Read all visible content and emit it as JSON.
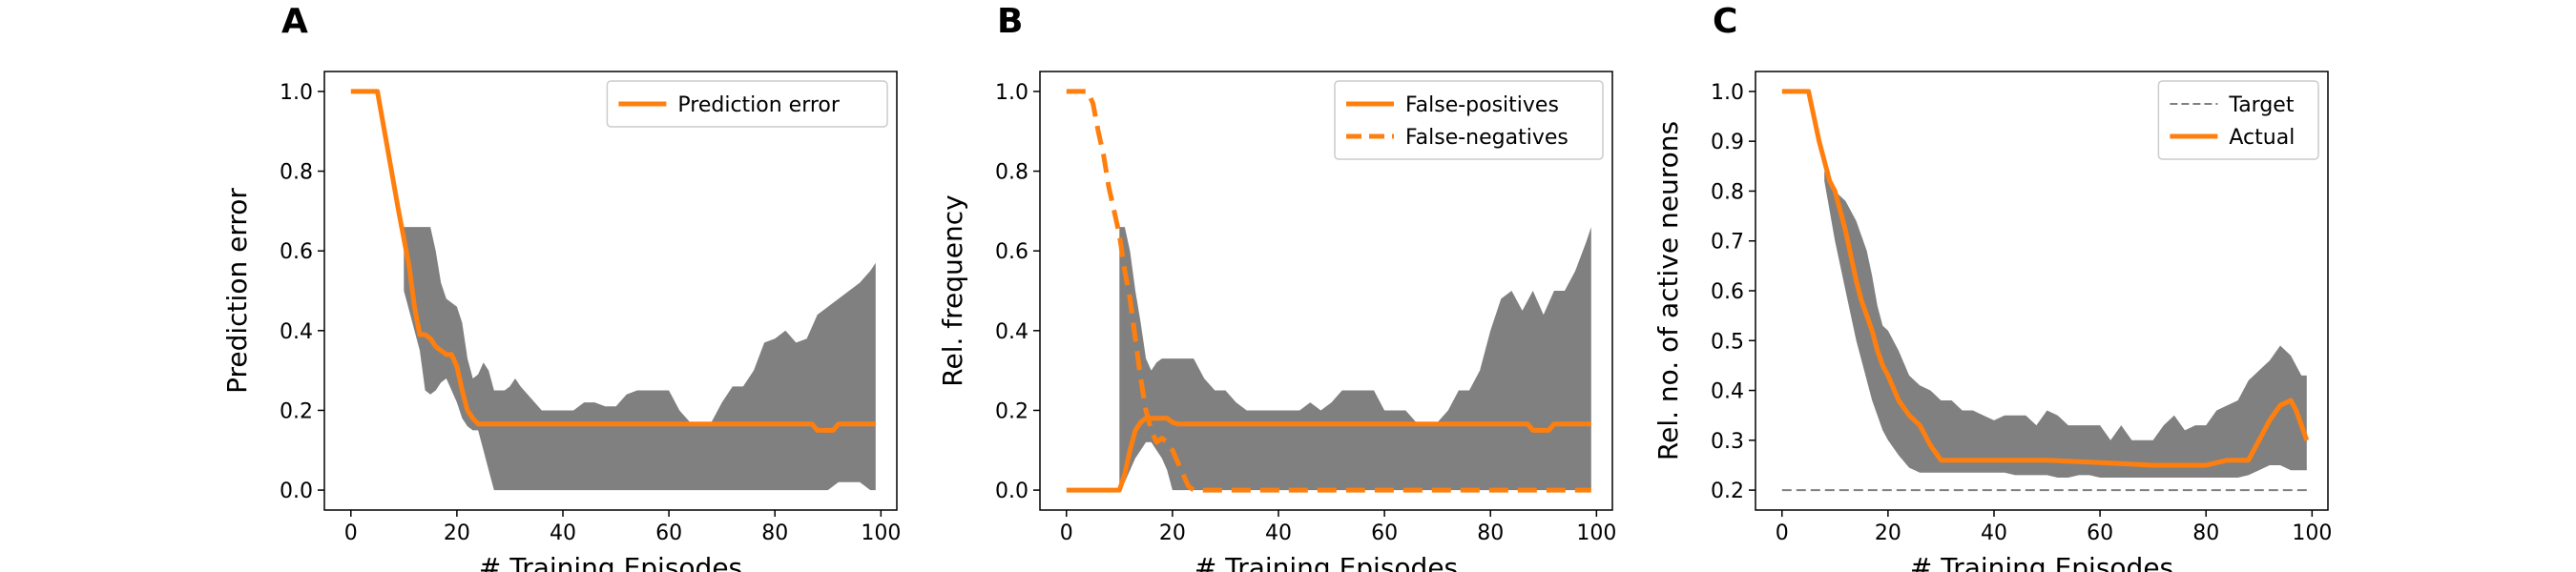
{
  "colors": {
    "actual": "#ff7f0e",
    "band": "#808080",
    "target": "#808080"
  },
  "chart_data": [
    {
      "panel": "A",
      "type": "line",
      "xlabel": "# Training Episodes",
      "ylabel": "Prediction error",
      "xlim": [
        -5,
        103
      ],
      "ylim": [
        -0.05,
        1.05
      ],
      "xticks": [
        0,
        20,
        40,
        60,
        80,
        100
      ],
      "yticks": [
        0.0,
        0.2,
        0.4,
        0.6,
        0.8,
        1.0
      ],
      "ytick_decimals": 1,
      "legend_position": "top-right",
      "legend": [
        "Prediction error"
      ],
      "band": {
        "x": [
          10,
          11,
          12,
          13,
          14,
          15,
          16,
          17,
          18,
          19,
          20,
          21,
          22,
          23,
          24,
          25,
          26,
          27,
          28,
          29,
          30,
          31,
          32,
          34,
          36,
          38,
          40,
          42,
          44,
          46,
          48,
          50,
          52,
          54,
          56,
          58,
          60,
          62,
          64,
          66,
          68,
          70,
          72,
          74,
          76,
          78,
          80,
          82,
          84,
          86,
          88,
          90,
          92,
          94,
          96,
          98,
          99
        ],
        "upper": [
          0.66,
          0.66,
          0.66,
          0.66,
          0.66,
          0.66,
          0.6,
          0.52,
          0.48,
          0.47,
          0.46,
          0.42,
          0.33,
          0.28,
          0.29,
          0.32,
          0.3,
          0.25,
          0.25,
          0.25,
          0.26,
          0.28,
          0.26,
          0.23,
          0.2,
          0.2,
          0.2,
          0.2,
          0.22,
          0.22,
          0.21,
          0.21,
          0.24,
          0.25,
          0.25,
          0.25,
          0.25,
          0.2,
          0.17,
          0.17,
          0.17,
          0.22,
          0.26,
          0.26,
          0.3,
          0.37,
          0.38,
          0.4,
          0.37,
          0.38,
          0.44,
          0.46,
          0.48,
          0.5,
          0.52,
          0.55,
          0.57
        ],
        "lower": [
          0.5,
          0.45,
          0.4,
          0.35,
          0.25,
          0.24,
          0.25,
          0.27,
          0.28,
          0.25,
          0.22,
          0.18,
          0.16,
          0.15,
          0.15,
          0.1,
          0.05,
          0.0,
          0.0,
          0.0,
          0.0,
          0.0,
          0.0,
          0.0,
          0.0,
          0.0,
          0.0,
          0.0,
          0.0,
          0.0,
          0.0,
          0.0,
          0.0,
          0.0,
          0.0,
          0.0,
          0.0,
          0.0,
          0.0,
          0.0,
          0.0,
          0.0,
          0.0,
          0.0,
          0.0,
          0.0,
          0.0,
          0.0,
          0.0,
          0.0,
          0.0,
          0.0,
          0.02,
          0.02,
          0.02,
          0.0,
          0.0
        ]
      },
      "series": [
        {
          "name": "Prediction error",
          "style": "solid",
          "color": "#ff7f0e",
          "x": [
            0,
            5,
            7,
            9,
            11,
            12,
            13,
            14,
            15,
            16,
            17,
            18,
            19,
            20,
            21,
            22,
            23,
            24,
            30,
            40,
            50,
            60,
            70,
            80,
            86,
            87,
            88,
            89,
            90,
            91,
            92,
            99
          ],
          "y": [
            1.0,
            1.0,
            0.85,
            0.7,
            0.56,
            0.46,
            0.39,
            0.39,
            0.38,
            0.36,
            0.35,
            0.34,
            0.34,
            0.31,
            0.25,
            0.2,
            0.18,
            0.166,
            0.166,
            0.166,
            0.166,
            0.166,
            0.166,
            0.166,
            0.166,
            0.166,
            0.15,
            0.15,
            0.15,
            0.15,
            0.166,
            0.166
          ]
        }
      ]
    },
    {
      "panel": "B",
      "type": "line",
      "xlabel": "# Training Episodes",
      "ylabel": "Rel. frequency",
      "xlim": [
        -5,
        103
      ],
      "ylim": [
        -0.05,
        1.05
      ],
      "xticks": [
        0,
        20,
        40,
        60,
        80,
        100
      ],
      "yticks": [
        0.0,
        0.2,
        0.4,
        0.6,
        0.8,
        1.0
      ],
      "ytick_decimals": 1,
      "legend_position": "top-right",
      "legend": [
        "False-positives",
        "False-negatives"
      ],
      "band": {
        "x": [
          10,
          11,
          12,
          13,
          14,
          15,
          16,
          17,
          18,
          19,
          20,
          22,
          24,
          26,
          28,
          30,
          32,
          34,
          36,
          38,
          40,
          42,
          44,
          46,
          48,
          50,
          52,
          54,
          56,
          58,
          60,
          62,
          64,
          66,
          68,
          70,
          72,
          74,
          76,
          78,
          80,
          82,
          84,
          86,
          88,
          90,
          92,
          94,
          96,
          98,
          99
        ],
        "upper": [
          0.66,
          0.66,
          0.6,
          0.5,
          0.42,
          0.33,
          0.3,
          0.32,
          0.33,
          0.33,
          0.33,
          0.33,
          0.33,
          0.28,
          0.25,
          0.25,
          0.22,
          0.2,
          0.2,
          0.2,
          0.2,
          0.2,
          0.2,
          0.22,
          0.2,
          0.22,
          0.25,
          0.25,
          0.25,
          0.25,
          0.2,
          0.2,
          0.2,
          0.17,
          0.17,
          0.17,
          0.2,
          0.25,
          0.25,
          0.3,
          0.4,
          0.48,
          0.5,
          0.45,
          0.5,
          0.44,
          0.5,
          0.5,
          0.55,
          0.62,
          0.66
        ],
        "lower": [
          0.0,
          0.02,
          0.05,
          0.08,
          0.1,
          0.12,
          0.12,
          0.1,
          0.08,
          0.05,
          0.0,
          0.0,
          0.0,
          0.0,
          0.0,
          0.0,
          0.0,
          0.0,
          0.0,
          0.0,
          0.0,
          0.0,
          0.0,
          0.0,
          0.0,
          0.0,
          0.0,
          0.0,
          0.0,
          0.0,
          0.0,
          0.0,
          0.0,
          0.0,
          0.0,
          0.0,
          0.0,
          0.0,
          0.0,
          0.0,
          0.0,
          0.0,
          0.0,
          0.0,
          0.0,
          0.0,
          0.0,
          0.0,
          0.0,
          0.0,
          0.0
        ]
      },
      "series": [
        {
          "name": "False-positives",
          "style": "solid",
          "color": "#ff7f0e",
          "x": [
            0,
            10,
            11,
            12,
            13,
            14,
            15,
            16,
            17,
            18,
            19,
            20,
            21,
            22,
            30,
            40,
            50,
            60,
            70,
            80,
            86,
            87,
            88,
            89,
            90,
            91,
            92,
            99
          ],
          "y": [
            0.0,
            0.0,
            0.04,
            0.1,
            0.15,
            0.17,
            0.18,
            0.18,
            0.18,
            0.18,
            0.18,
            0.17,
            0.166,
            0.166,
            0.166,
            0.166,
            0.166,
            0.166,
            0.166,
            0.166,
            0.166,
            0.166,
            0.15,
            0.15,
            0.15,
            0.15,
            0.166,
            0.166
          ]
        },
        {
          "name": "False-negatives",
          "style": "dashed",
          "color": "#ff7f0e",
          "x": [
            0,
            4,
            5,
            6,
            7,
            8,
            9,
            10,
            11,
            12,
            13,
            14,
            15,
            16,
            17,
            18,
            19,
            20,
            21,
            22,
            23,
            24,
            30,
            40,
            60,
            80,
            99
          ],
          "y": [
            1.0,
            1.0,
            0.97,
            0.9,
            0.84,
            0.76,
            0.7,
            0.64,
            0.55,
            0.48,
            0.38,
            0.28,
            0.2,
            0.15,
            0.12,
            0.13,
            0.12,
            0.1,
            0.07,
            0.04,
            0.01,
            0.0,
            0.0,
            0.0,
            0.0,
            0.0,
            0.0
          ]
        }
      ]
    },
    {
      "panel": "C",
      "type": "line",
      "xlabel": "# Training Episodes",
      "ylabel": "Rel. no. of active neurons",
      "xlim": [
        -5,
        103
      ],
      "ylim": [
        0.16,
        1.04
      ],
      "xticks": [
        0,
        20,
        40,
        60,
        80,
        100
      ],
      "yticks": [
        0.2,
        0.3,
        0.4,
        0.5,
        0.6,
        0.7,
        0.8,
        0.9,
        1.0
      ],
      "ytick_decimals": 1,
      "legend_position": "top-right",
      "legend": [
        "Target",
        "Actual"
      ],
      "band": {
        "x": [
          8,
          10,
          12,
          14,
          16,
          17,
          18,
          19,
          20,
          22,
          24,
          26,
          28,
          30,
          32,
          34,
          36,
          38,
          40,
          42,
          44,
          46,
          48,
          50,
          52,
          54,
          56,
          58,
          60,
          62,
          64,
          66,
          68,
          70,
          72,
          74,
          76,
          78,
          80,
          82,
          84,
          86,
          88,
          90,
          92,
          94,
          96,
          98,
          99
        ],
        "upper": [
          0.84,
          0.8,
          0.78,
          0.74,
          0.68,
          0.63,
          0.57,
          0.53,
          0.52,
          0.48,
          0.43,
          0.41,
          0.4,
          0.38,
          0.38,
          0.36,
          0.36,
          0.35,
          0.34,
          0.35,
          0.35,
          0.35,
          0.33,
          0.36,
          0.35,
          0.33,
          0.33,
          0.33,
          0.33,
          0.3,
          0.33,
          0.3,
          0.3,
          0.3,
          0.33,
          0.35,
          0.32,
          0.33,
          0.33,
          0.36,
          0.37,
          0.38,
          0.42,
          0.44,
          0.46,
          0.49,
          0.47,
          0.43,
          0.43
        ],
        "lower": [
          0.82,
          0.7,
          0.6,
          0.5,
          0.42,
          0.38,
          0.35,
          0.32,
          0.3,
          0.27,
          0.245,
          0.235,
          0.235,
          0.235,
          0.235,
          0.235,
          0.235,
          0.235,
          0.235,
          0.235,
          0.23,
          0.23,
          0.23,
          0.23,
          0.225,
          0.225,
          0.23,
          0.23,
          0.225,
          0.225,
          0.225,
          0.225,
          0.225,
          0.225,
          0.225,
          0.225,
          0.225,
          0.225,
          0.225,
          0.225,
          0.225,
          0.225,
          0.23,
          0.24,
          0.25,
          0.25,
          0.24,
          0.24,
          0.24
        ]
      },
      "series": [
        {
          "name": "Target",
          "style": "dashed-thin",
          "color": "#808080",
          "x": [
            0,
            99
          ],
          "y": [
            0.2,
            0.2
          ]
        },
        {
          "name": "Actual",
          "style": "solid",
          "color": "#ff7f0e",
          "x": [
            0,
            5,
            7,
            9,
            10,
            11,
            12,
            13,
            14,
            15,
            16,
            17,
            18,
            19,
            20,
            22,
            24,
            26,
            28,
            30,
            40,
            50,
            60,
            70,
            80,
            84,
            86,
            88,
            90,
            92,
            94,
            96,
            97,
            98,
            99
          ],
          "y": [
            1.0,
            1.0,
            0.9,
            0.82,
            0.8,
            0.76,
            0.72,
            0.67,
            0.62,
            0.58,
            0.55,
            0.52,
            0.48,
            0.45,
            0.43,
            0.38,
            0.35,
            0.33,
            0.29,
            0.26,
            0.26,
            0.26,
            0.255,
            0.25,
            0.25,
            0.26,
            0.26,
            0.26,
            0.3,
            0.34,
            0.37,
            0.38,
            0.36,
            0.33,
            0.3
          ]
        }
      ]
    }
  ]
}
